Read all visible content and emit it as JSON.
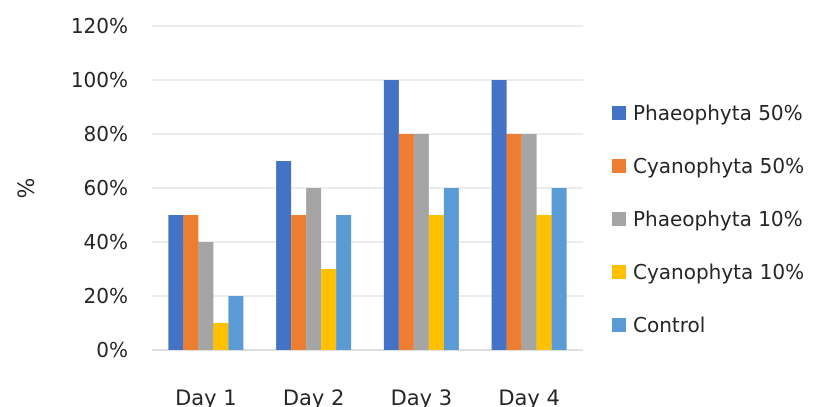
{
  "chart_data": {
    "type": "bar",
    "title": "",
    "xlabel": "",
    "ylabel": "%",
    "categories": [
      "Day 1",
      "Day 2",
      "Day 3",
      "Day 4"
    ],
    "ylim": [
      0,
      120
    ],
    "yticks": [
      "0%",
      "20%",
      "40%",
      "60%",
      "80%",
      "100%",
      "120%"
    ],
    "grid": true,
    "legend_position": "right",
    "series": [
      {
        "name": "Phaeophyta 50%",
        "color": "#4472C4",
        "values": [
          50,
          70,
          100,
          100
        ]
      },
      {
        "name": "Cyanophyta 50%",
        "color": "#ED7D31",
        "values": [
          50,
          50,
          80,
          80
        ]
      },
      {
        "name": "Phaeophyta 10%",
        "color": "#A5A5A5",
        "values": [
          40,
          60,
          80,
          80
        ]
      },
      {
        "name": "Cyanophyta 10%",
        "color": "#FFC000",
        "values": [
          10,
          30,
          50,
          50
        ]
      },
      {
        "name": "Control",
        "color": "#5B9BD5",
        "values": [
          20,
          50,
          60,
          60
        ]
      }
    ]
  }
}
